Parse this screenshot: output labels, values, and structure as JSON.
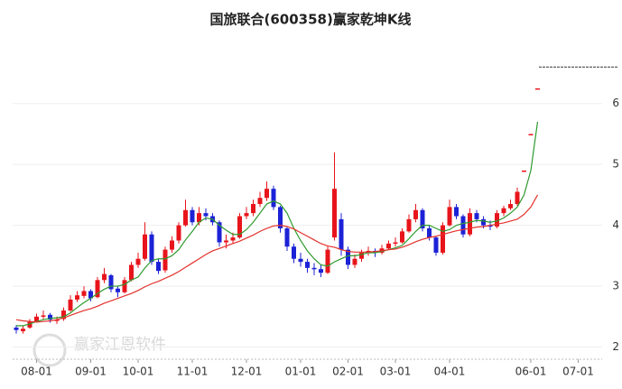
{
  "chart_data": {
    "type": "candlestick",
    "title": "国旅联合(600358)赢家乾坤K线",
    "watermark": "赢家江恩软件",
    "categories": [
      null,
      null,
      null,
      "08-01",
      null,
      null,
      null,
      null,
      null,
      null,
      null,
      "09-01",
      null,
      null,
      null,
      null,
      null,
      null,
      "10-01",
      null,
      null,
      null,
      null,
      null,
      null,
      null,
      "11-01",
      null,
      null,
      null,
      null,
      null,
      null,
      null,
      "12-01",
      null,
      null,
      null,
      null,
      null,
      null,
      null,
      "01-01",
      null,
      null,
      null,
      null,
      null,
      null,
      "02-01",
      null,
      null,
      null,
      null,
      null,
      null,
      "03-01",
      null,
      null,
      null,
      null,
      null,
      null,
      null,
      "04-01",
      null,
      null,
      null,
      null,
      null,
      null,
      null,
      null,
      null,
      null,
      null,
      "06-01",
      null,
      null,
      null,
      null,
      null,
      null,
      "07-01"
    ],
    "open": [
      2.32,
      2.26,
      2.32,
      2.42,
      2.5,
      2.53,
      2.44,
      2.46,
      2.6,
      2.78,
      2.84,
      2.92,
      2.82,
      3.1,
      3.18,
      2.96,
      2.9,
      3.1,
      3.35,
      3.45,
      3.85,
      3.4,
      3.26,
      3.6,
      3.75,
      4.0,
      4.25,
      4.05,
      4.2,
      4.15,
      4.05,
      3.72,
      3.75,
      3.8,
      4.15,
      4.2,
      4.35,
      4.45,
      4.6,
      4.3,
      3.95,
      3.65,
      3.45,
      3.4,
      3.3,
      3.28,
      3.22,
      3.8,
      4.1,
      3.6,
      3.35,
      3.45,
      3.55,
      3.58,
      3.55,
      3.62,
      3.7,
      3.72,
      3.9,
      4.1,
      4.25,
      3.95,
      3.8,
      3.55,
      4.0,
      4.3,
      4.15,
      3.85,
      4.2,
      4.1,
      4.0,
      3.98,
      4.2,
      4.28,
      4.35,
      4.9,
      5.5,
      6.25,
      null,
      null,
      null,
      null,
      null,
      null
    ],
    "high": [
      2.36,
      2.35,
      2.46,
      2.55,
      2.6,
      2.56,
      2.5,
      2.65,
      2.85,
      2.92,
      3.0,
      2.95,
      3.15,
      3.3,
      3.2,
      3.0,
      3.15,
      3.4,
      3.55,
      4.05,
      3.9,
      3.45,
      3.65,
      3.82,
      4.05,
      4.42,
      4.3,
      4.3,
      4.28,
      4.2,
      4.08,
      3.85,
      3.88,
      4.2,
      4.3,
      4.42,
      4.55,
      4.72,
      4.65,
      4.32,
      3.98,
      3.7,
      3.55,
      3.45,
      3.38,
      3.35,
      3.65,
      5.2,
      4.2,
      3.65,
      3.52,
      3.6,
      3.65,
      3.62,
      3.68,
      3.75,
      3.8,
      3.95,
      4.18,
      4.35,
      4.28,
      4.0,
      3.82,
      4.05,
      4.42,
      4.35,
      4.18,
      4.28,
      4.25,
      4.15,
      4.08,
      4.25,
      4.32,
      4.42,
      4.62,
      4.9,
      5.5,
      6.25,
      null,
      null,
      null,
      null,
      null,
      null
    ],
    "low": [
      2.22,
      2.22,
      2.3,
      2.4,
      2.46,
      2.4,
      2.38,
      2.43,
      2.58,
      2.74,
      2.8,
      2.75,
      2.8,
      3.05,
      2.9,
      2.82,
      2.88,
      3.08,
      3.3,
      3.42,
      3.35,
      3.2,
      3.22,
      3.55,
      3.7,
      3.98,
      4.0,
      4.0,
      4.08,
      4.0,
      3.65,
      3.62,
      3.7,
      3.78,
      4.1,
      4.15,
      4.3,
      4.4,
      4.25,
      3.88,
      3.58,
      3.38,
      3.32,
      3.22,
      3.18,
      3.15,
      3.2,
      3.75,
      3.5,
      3.28,
      3.3,
      3.4,
      3.5,
      3.48,
      3.52,
      3.6,
      3.65,
      3.7,
      3.88,
      4.05,
      3.9,
      3.75,
      3.5,
      3.52,
      3.98,
      4.1,
      3.8,
      3.82,
      4.05,
      3.95,
      3.92,
      3.95,
      4.15,
      4.25,
      4.32,
      4.9,
      5.5,
      6.25,
      null,
      null,
      null,
      null,
      null,
      null
    ],
    "close": [
      2.28,
      2.3,
      2.42,
      2.5,
      2.52,
      2.45,
      2.45,
      2.6,
      2.78,
      2.85,
      2.92,
      2.8,
      3.1,
      3.2,
      2.95,
      2.9,
      3.1,
      3.35,
      3.45,
      3.85,
      3.4,
      3.25,
      3.6,
      3.75,
      4.0,
      4.25,
      4.05,
      4.2,
      4.15,
      4.05,
      3.72,
      3.75,
      3.8,
      4.15,
      4.2,
      4.35,
      4.45,
      4.6,
      4.3,
      3.95,
      3.65,
      3.45,
      3.4,
      3.3,
      3.28,
      3.22,
      3.6,
      4.6,
      3.6,
      3.35,
      3.45,
      3.55,
      3.58,
      3.55,
      3.62,
      3.7,
      3.72,
      3.9,
      4.1,
      4.25,
      3.95,
      3.8,
      3.55,
      4.0,
      4.3,
      4.15,
      3.85,
      4.2,
      4.1,
      4.0,
      3.98,
      4.2,
      4.28,
      4.35,
      4.55,
      4.9,
      5.5,
      6.25,
      null,
      null,
      null,
      null,
      null,
      null
    ],
    "up_color": "#e8141b",
    "down_color": "#1c22d6",
    "series": [
      {
        "color": "#2e9a2e",
        "values": [
          2.35,
          2.35,
          2.38,
          2.42,
          2.45,
          2.47,
          2.48,
          2.5,
          2.56,
          2.65,
          2.73,
          2.8,
          2.88,
          2.95,
          3.0,
          3.0,
          3.03,
          3.1,
          3.15,
          3.3,
          3.42,
          3.45,
          3.45,
          3.5,
          3.6,
          3.76,
          3.9,
          4.05,
          4.12,
          4.1,
          4.0,
          3.92,
          3.85,
          3.85,
          3.93,
          4.05,
          4.2,
          4.35,
          4.4,
          4.35,
          4.2,
          3.95,
          3.75,
          3.58,
          3.45,
          3.35,
          3.33,
          3.4,
          3.45,
          3.5,
          3.5,
          3.52,
          3.55,
          3.55,
          3.57,
          3.6,
          3.63,
          3.67,
          3.78,
          3.9,
          4.0,
          4.0,
          3.95,
          3.9,
          3.93,
          4.0,
          4.03,
          4.05,
          4.08,
          4.07,
          4.05,
          4.07,
          4.12,
          4.2,
          4.3,
          4.5,
          4.9,
          5.7,
          null,
          null,
          null,
          null,
          null,
          null
        ]
      },
      {
        "color": "#e3312c",
        "values": [
          2.45,
          2.43,
          2.42,
          2.41,
          2.42,
          2.43,
          2.45,
          2.48,
          2.52,
          2.56,
          2.6,
          2.63,
          2.67,
          2.72,
          2.76,
          2.8,
          2.84,
          2.88,
          2.93,
          2.99,
          3.04,
          3.08,
          3.13,
          3.18,
          3.24,
          3.31,
          3.38,
          3.45,
          3.52,
          3.58,
          3.62,
          3.66,
          3.7,
          3.74,
          3.79,
          3.84,
          3.9,
          3.95,
          3.99,
          4.0,
          3.98,
          3.94,
          3.88,
          3.82,
          3.76,
          3.7,
          3.66,
          3.64,
          3.6,
          3.57,
          3.56,
          3.56,
          3.56,
          3.57,
          3.58,
          3.6,
          3.61,
          3.64,
          3.68,
          3.73,
          3.77,
          3.8,
          3.82,
          3.85,
          3.88,
          3.91,
          3.93,
          3.95,
          3.97,
          3.98,
          4.0,
          4.02,
          4.04,
          4.07,
          4.1,
          4.18,
          4.3,
          4.5,
          null,
          null,
          null,
          null,
          null,
          null
        ]
      }
    ],
    "reference_line": {
      "value": 6.6,
      "color": "#333333"
    },
    "ylim": [
      1.8,
      6.96
    ],
    "yticks": [
      2,
      3,
      4,
      5,
      6
    ],
    "grid": true,
    "y_axis_side": "right"
  }
}
